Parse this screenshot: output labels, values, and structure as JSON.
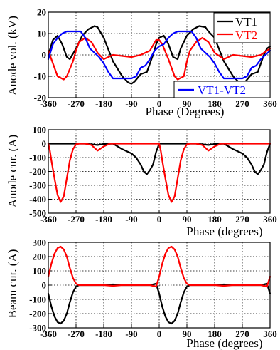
{
  "chart_data": [
    {
      "type": "line",
      "ylabel": "Anode vol. (kV)",
      "xlabel": "Phase (Degrees)",
      "xlim": [
        -360,
        360
      ],
      "ylim": [
        -20,
        20
      ],
      "xticks": [
        -360,
        -270,
        -180,
        -90,
        0,
        90,
        180,
        270,
        360
      ],
      "yticks": [
        -20,
        -10,
        0,
        10,
        20
      ],
      "grid": true,
      "legend": "top-right (VT1, VT2); bottom-right (VT1-VT2)",
      "series": [
        {
          "name": "VT1",
          "color": "#000000",
          "x": [
            -360,
            -345,
            -330,
            -315,
            -300,
            -290,
            -270,
            -250,
            -230,
            -210,
            -200,
            -180,
            -150,
            -120,
            -100,
            -90,
            -80,
            -60,
            -40,
            -20,
            -10,
            0,
            15,
            30,
            45,
            60,
            70,
            90,
            110,
            130,
            150,
            160,
            180,
            210,
            240,
            260,
            270,
            280,
            300,
            320,
            340,
            350,
            360
          ],
          "y": [
            0,
            7,
            9,
            5,
            -1,
            -2,
            3,
            9,
            12,
            13.5,
            13,
            8,
            -3,
            -10,
            -13,
            -13.5,
            -12.5,
            -9,
            -8,
            0,
            5,
            8,
            9,
            5,
            -1,
            -2,
            3,
            9,
            12,
            13.5,
            13,
            11,
            8,
            -3,
            -10,
            -13,
            -13.5,
            -12.5,
            -9,
            -8,
            0,
            3,
            4
          ]
        },
        {
          "name": "VT2",
          "color": "#ff0000",
          "x": [
            -360,
            -350,
            -330,
            -310,
            -300,
            -280,
            -270,
            -260,
            -240,
            -220,
            -200,
            -180,
            -150,
            -120,
            -90,
            -60,
            -30,
            -10,
            0,
            10,
            30,
            50,
            60,
            80,
            90,
            100,
            120,
            140,
            160,
            180,
            210,
            240,
            270,
            300,
            330,
            350,
            360
          ],
          "y": [
            2,
            -2,
            -10,
            -11.5,
            -10,
            -3,
            2,
            6,
            8,
            6,
            1,
            -2,
            0,
            -0.5,
            -1,
            0,
            2,
            7,
            7,
            5,
            -2,
            -10,
            -11.5,
            -10,
            -3,
            2,
            6,
            8,
            6,
            1,
            -2,
            0,
            -0.5,
            -1,
            0,
            2,
            3
          ]
        },
        {
          "name": "VT1-VT2",
          "color": "#0000ff",
          "x": [
            -360,
            -345,
            -330,
            -315,
            -300,
            -285,
            -270,
            -255,
            -240,
            -225,
            -210,
            -195,
            -180,
            -165,
            -150,
            -135,
            -120,
            -105,
            -90,
            -75,
            -60,
            -45,
            -30,
            -15,
            0,
            15,
            30,
            45,
            60,
            75,
            90,
            105,
            120,
            135,
            150,
            165,
            180,
            195,
            210,
            225,
            240,
            255,
            270,
            285,
            300,
            315,
            330,
            345,
            360
          ],
          "y": [
            -2,
            5,
            8,
            10,
            11,
            11,
            11,
            11,
            8,
            3,
            1,
            -1,
            -4,
            -8,
            -11,
            -11,
            -11,
            -11,
            -11,
            -10,
            -6,
            -5,
            -2,
            2,
            4,
            5,
            8,
            10,
            11,
            11,
            11,
            11,
            8,
            3,
            1,
            -1,
            -4,
            -8,
            -11,
            -11,
            -11,
            -11,
            -11,
            -10,
            -6,
            -5,
            -2,
            0,
            2
          ]
        }
      ]
    },
    {
      "type": "line",
      "ylabel": "Anode cur. (A)",
      "xlabel": "Phase (degrees)",
      "xlim": [
        -360,
        360
      ],
      "ylim": [
        -500,
        100
      ],
      "xticks": [
        -360,
        -270,
        -180,
        -90,
        0,
        90,
        180,
        270,
        360
      ],
      "yticks": [
        -500,
        -400,
        -300,
        -200,
        -100,
        0,
        100
      ],
      "grid": true,
      "series": [
        {
          "name": "",
          "color": "#000000",
          "x": [
            -360,
            -240,
            -220,
            -200,
            -180,
            -150,
            -120,
            -90,
            -75,
            -60,
            -50,
            -40,
            -30,
            -20,
            -10,
            0,
            120,
            140,
            160,
            180,
            210,
            240,
            270,
            285,
            300,
            310,
            320,
            330,
            340,
            350,
            360
          ],
          "y": [
            0,
            0,
            -5,
            -10,
            -3,
            0,
            -40,
            -70,
            -100,
            -150,
            -200,
            -220,
            -190,
            -150,
            -60,
            0,
            0,
            -5,
            -10,
            -3,
            0,
            -40,
            -70,
            -100,
            -150,
            -200,
            -220,
            -190,
            -150,
            -60,
            0
          ]
        },
        {
          "name": "",
          "color": "#ff0000",
          "x": [
            -360,
            -355,
            -350,
            -340,
            -330,
            -320,
            -310,
            -300,
            -290,
            -280,
            -270,
            -260,
            -240,
            -220,
            -200,
            -180,
            -160,
            0,
            5,
            10,
            20,
            30,
            40,
            50,
            60,
            70,
            80,
            90,
            100,
            120,
            140,
            160,
            180,
            200,
            360
          ],
          "y": [
            0,
            -50,
            -120,
            -250,
            -370,
            -420,
            -380,
            -250,
            -120,
            -40,
            -5,
            0,
            0,
            -10,
            -50,
            -20,
            0,
            0,
            -50,
            -120,
            -250,
            -370,
            -420,
            -380,
            -250,
            -120,
            -40,
            -5,
            0,
            0,
            -10,
            -50,
            -20,
            0,
            0
          ]
        }
      ]
    },
    {
      "type": "line",
      "ylabel": "Beam cur. (A)",
      "xlabel": "Phase (degrees)",
      "xlim": [
        -360,
        360
      ],
      "ylim": [
        -300,
        300
      ],
      "xticks": [
        -360,
        -270,
        -180,
        -90,
        0,
        90,
        180,
        270,
        360
      ],
      "yticks": [
        -300,
        -200,
        -100,
        0,
        100,
        200,
        300
      ],
      "grid": true,
      "series": [
        {
          "name": "",
          "color": "#000000",
          "x": [
            -360,
            -350,
            -340,
            -330,
            -320,
            -310,
            -300,
            -290,
            -280,
            -270,
            -260,
            -180,
            -150,
            -120,
            -90,
            -60,
            -30,
            -20,
            -10,
            0,
            10,
            20,
            30,
            40,
            50,
            60,
            70,
            80,
            90,
            100,
            180,
            210,
            240,
            270,
            300,
            330,
            340,
            350,
            360
          ],
          "y": [
            -60,
            -150,
            -220,
            -260,
            -270,
            -250,
            -200,
            -120,
            -50,
            -10,
            0,
            0,
            5,
            0,
            0,
            0,
            0,
            5,
            10,
            -60,
            -150,
            -220,
            -260,
            -270,
            -250,
            -200,
            -120,
            -50,
            -10,
            0,
            0,
            5,
            0,
            0,
            0,
            0,
            5,
            10,
            -60
          ]
        },
        {
          "name": "",
          "color": "#ff0000",
          "x": [
            -360,
            -350,
            -340,
            -330,
            -320,
            -310,
            -300,
            -290,
            -280,
            -270,
            -260,
            -180,
            -150,
            -120,
            -90,
            -60,
            -30,
            -20,
            -10,
            0,
            10,
            20,
            30,
            40,
            50,
            60,
            70,
            80,
            90,
            100,
            180,
            210,
            240,
            270,
            300,
            330,
            340,
            350,
            360
          ],
          "y": [
            60,
            150,
            220,
            260,
            270,
            250,
            200,
            120,
            50,
            10,
            0,
            0,
            -5,
            0,
            0,
            0,
            0,
            -5,
            -10,
            60,
            150,
            220,
            260,
            270,
            250,
            200,
            120,
            50,
            10,
            0,
            0,
            -5,
            0,
            0,
            0,
            0,
            -5,
            -10,
            60
          ]
        }
      ]
    }
  ]
}
